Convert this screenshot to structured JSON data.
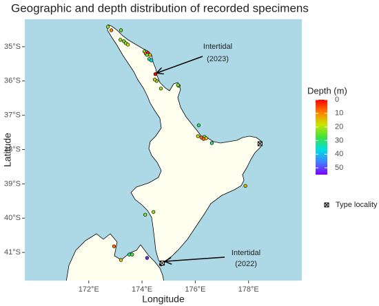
{
  "chart_data": {
    "type": "map",
    "title": "Geographic and depth distribution of recorded specimens",
    "x_label": "Longitude",
    "y_label": "Latitude",
    "xlim": [
      169.6,
      180
    ],
    "ylim": [
      -41.82,
      -34.2
    ],
    "xticks": [
      {
        "value": 172,
        "label": "172°E"
      },
      {
        "value": 174,
        "label": "174°E"
      },
      {
        "value": 176,
        "label": "176°E"
      },
      {
        "value": 178,
        "label": "178°E"
      }
    ],
    "yticks": [
      {
        "value": -35,
        "label": "35°S"
      },
      {
        "value": -36,
        "label": "36°S"
      },
      {
        "value": -37,
        "label": "37°S"
      },
      {
        "value": -38,
        "label": "38°S"
      },
      {
        "value": -39,
        "label": "39°S"
      },
      {
        "value": -40,
        "label": "40°S"
      },
      {
        "value": -41,
        "label": "41°S"
      }
    ],
    "lon": [
      172.72,
      172.85,
      173.21,
      173.19,
      173.32,
      173.39,
      173.47,
      174.09,
      174.14,
      174.22,
      174.3,
      174.19,
      174.27,
      174.35,
      174.5,
      174.55,
      174.48,
      174.71,
      175.38,
      175.35,
      176.13,
      176.1,
      176.23,
      176.34,
      176.41,
      176.31,
      176.62,
      177.88,
      174.43,
      174.12,
      172.95,
      173.21,
      173.52,
      173.63,
      174.19,
      174.76,
      174.71
    ],
    "lat": [
      -34.42,
      -34.52,
      -34.52,
      -34.8,
      -34.84,
      -34.9,
      -34.94,
      -35.14,
      -35.2,
      -35.18,
      -35.24,
      -35.24,
      -35.36,
      -35.4,
      -35.8,
      -36.0,
      -35.96,
      -36.22,
      -36.14,
      -36.12,
      -37.29,
      -37.61,
      -37.65,
      -37.63,
      -37.67,
      -37.69,
      -37.81,
      -39.06,
      -39.82,
      -39.9,
      -40.82,
      -41.22,
      -41.06,
      -41.06,
      -41.16,
      -41.31,
      -41.35
    ],
    "depth": [
      22,
      10,
      24,
      22,
      24,
      22,
      18,
      22,
      8,
      2,
      15,
      24,
      32,
      38,
      0,
      22,
      16,
      22,
      22,
      24,
      30,
      16,
      8,
      22,
      16,
      8,
      32,
      14,
      22,
      24,
      8,
      16,
      32,
      26,
      52,
      0,
      6
    ],
    "colorscale": {
      "title": "Depth (m)",
      "range": [
        0,
        55
      ],
      "ticks": [
        0,
        10,
        20,
        30,
        40,
        50
      ],
      "colors": [
        "#ff0000",
        "#ff8000",
        "#c8e600",
        "#40e040",
        "#00e0e0",
        "#4080ff",
        "#8000ff"
      ]
    },
    "type_locality": {
      "name": "Type locality",
      "lon": [
        178.43,
        174.76
      ],
      "lat": [
        -37.83,
        -41.31
      ]
    },
    "annotations": [
      {
        "lines": [
          "Intertidal",
          "(2023)"
        ]
      },
      {
        "lines": [
          "Intertidal",
          "(2022)"
        ]
      }
    ],
    "background": "#add8e6",
    "land": "#fffff0"
  }
}
